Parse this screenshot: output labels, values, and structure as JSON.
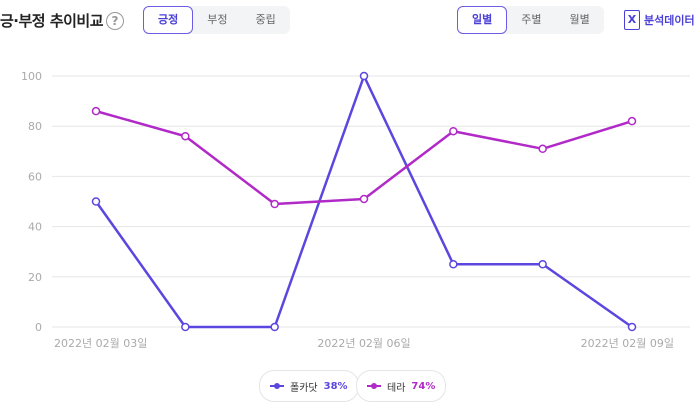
{
  "header": {
    "title": "긍·부정 추이비교",
    "help": "?",
    "sentiment_tabs": [
      "긍정",
      "부정",
      "중립"
    ],
    "sentiment_active": 0,
    "period_tabs": [
      "일별",
      "주별",
      "월별"
    ],
    "period_active": 0,
    "export_label": "분석데이터",
    "export_icon": "excel-icon"
  },
  "colors": {
    "series1": "#5b47e0",
    "series2": "#b12ac8",
    "grid": "#e6e6e6",
    "axis_text": "#aaaaaa"
  },
  "chart_data": {
    "type": "line",
    "x": [
      "2022년 02월 03일",
      "",
      "",
      "2022년 02월 06일",
      "",
      "",
      "2022년 02월 09일"
    ],
    "x_ticks_shown": [
      "2022년 02월 03일",
      "2022년 02월 06일",
      "2022년 02월 09일"
    ],
    "ylim": [
      0,
      100
    ],
    "yticks": [
      0,
      20,
      40,
      60,
      80,
      100
    ],
    "series": [
      {
        "name": "폴카닷",
        "pct": "38%",
        "values": [
          50,
          0,
          0,
          100,
          25,
          25,
          0
        ]
      },
      {
        "name": "테라",
        "pct": "74%",
        "values": [
          86,
          76,
          49,
          51,
          78,
          71,
          82
        ]
      }
    ],
    "grid": true,
    "legend": "bottom-center"
  }
}
